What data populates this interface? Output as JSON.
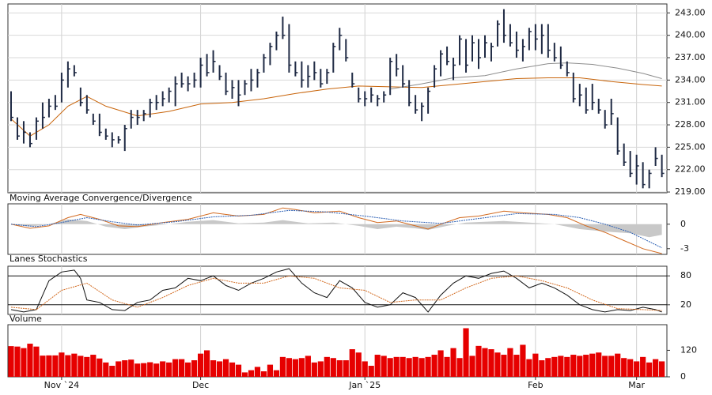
{
  "chart_data": {
    "type": "ohlc",
    "xlim": [
      -0.5,
      103.8
    ],
    "xticks": [
      {
        "value": 8,
        "label": "Nov `24"
      },
      {
        "value": 30,
        "label": "Dec"
      },
      {
        "value": 56,
        "label": "Jan `25"
      },
      {
        "value": 83,
        "label": "Feb"
      },
      {
        "value": 99,
        "label": "Mar"
      }
    ],
    "grid": true,
    "price": {
      "color": "#1f2a44",
      "ylim": [
        218.9,
        244.2
      ],
      "yticks": [
        {
          "value": 243,
          "label": "243.00"
        },
        {
          "value": 240,
          "label": "240.00"
        },
        {
          "value": 237,
          "label": "237.00"
        },
        {
          "value": 234,
          "label": "234.00"
        },
        {
          "value": 231,
          "label": "231.00"
        },
        {
          "value": 228,
          "label": "228.00"
        },
        {
          "value": 225,
          "label": "225.00"
        },
        {
          "value": 222,
          "label": "222.00"
        },
        {
          "value": 219,
          "label": "219.00"
        }
      ],
      "high": [
        232.5,
        229,
        228.5,
        227,
        229,
        231,
        231.5,
        232,
        235,
        236.5,
        236,
        233,
        232,
        229.5,
        229.5,
        227.5,
        227,
        226.5,
        228,
        230,
        230,
        230,
        231.5,
        232,
        232.5,
        233,
        234.5,
        235,
        234.5,
        235,
        237,
        237.5,
        238,
        236,
        235,
        234,
        234,
        234,
        235.5,
        235.5,
        237.5,
        239,
        240.5,
        242.5,
        241.5,
        236.5,
        236.5,
        236,
        236.5,
        235.5,
        235.5,
        239,
        241,
        239.5,
        235,
        233,
        232.5,
        233,
        232,
        232.5,
        237,
        237.5,
        236,
        234,
        232,
        231,
        233,
        236,
        238,
        238.5,
        237,
        240,
        239.5,
        240,
        239.5,
        240,
        239,
        242,
        243.5,
        241.5,
        240.5,
        239.5,
        241,
        241.5,
        241.5,
        241.5,
        239,
        238.5,
        236.5,
        235,
        233.5,
        233,
        233.5,
        231.5,
        230,
        231.5,
        229,
        225.5,
        224.5,
        224,
        223,
        222,
        225,
        224
      ],
      "low": [
        228.5,
        226,
        225.5,
        225,
        226,
        227.5,
        229,
        230,
        231,
        233,
        234.5,
        230.5,
        229.5,
        228,
        226.5,
        226,
        225,
        225.5,
        224.5,
        227.5,
        228,
        228.5,
        229,
        230,
        230.5,
        231,
        230.5,
        233,
        232.5,
        233,
        233,
        234.5,
        235,
        234,
        232,
        231.5,
        230.5,
        232,
        232.5,
        233,
        235,
        236,
        238,
        239.5,
        235,
        234.5,
        233,
        233,
        234,
        233,
        233.5,
        235,
        238,
        236.5,
        233,
        231,
        230.5,
        231,
        230.5,
        231,
        232,
        234.5,
        233,
        230.5,
        229.5,
        228.5,
        229.5,
        233,
        234.5,
        236,
        234,
        236,
        235,
        236.5,
        235.5,
        237,
        236.5,
        238.5,
        239,
        238.5,
        237,
        236.5,
        238,
        238,
        237.5,
        237,
        236.5,
        235.5,
        234.5,
        231,
        230.5,
        229.5,
        230,
        229.5,
        227.5,
        228,
        224,
        222.5,
        221,
        220,
        219.5,
        219.5,
        222.5,
        221
      ],
      "close": [
        229,
        226.5,
        227,
        225.5,
        228.5,
        229,
        230.5,
        230.5,
        234,
        235.5,
        235,
        231,
        230,
        228.5,
        227,
        226.5,
        226,
        226,
        227.5,
        229,
        229,
        229.5,
        231,
        231,
        231.5,
        232.5,
        233.5,
        233.5,
        233.5,
        234,
        236,
        235,
        236.5,
        234.5,
        232.5,
        233,
        232,
        233.5,
        234,
        235,
        237,
        238.5,
        240,
        240,
        236,
        235,
        234,
        234.5,
        235,
        233.5,
        235,
        238.5,
        240,
        237,
        233.5,
        231.5,
        231.5,
        232,
        231.5,
        232,
        236.5,
        235.5,
        233.5,
        231,
        230,
        230.5,
        232.5,
        235.5,
        237.5,
        236.5,
        236,
        239.5,
        236,
        239,
        237,
        239,
        238.5,
        241.5,
        240,
        239,
        238,
        238.5,
        240.5,
        239.5,
        240,
        238,
        237,
        236,
        235,
        231.5,
        232,
        230,
        231,
        230,
        228,
        229.5,
        224.5,
        223,
        221.5,
        222.5,
        220,
        221.5,
        223.5,
        221.5
      ],
      "ma": [
        {
          "color": "#c8640a",
          "x": [
            0,
            3,
            6,
            9,
            12,
            15,
            20,
            25,
            30,
            35,
            40,
            45,
            50,
            55,
            60,
            65,
            70,
            75,
            80,
            85,
            90,
            95,
            100,
            103
          ],
          "values": [
            228.8,
            226.5,
            228,
            230.5,
            231.8,
            230.5,
            229.2,
            229.8,
            230.8,
            231,
            231.5,
            232.2,
            232.8,
            233.2,
            233.1,
            233,
            233.4,
            233.8,
            234.2,
            234.3,
            234.3,
            233.8,
            233.4,
            233.2
          ]
        },
        {
          "color": "#8c8c8c",
          "x": [
            60,
            65,
            70,
            75,
            80,
            85,
            88,
            92,
            96,
            100,
            103
          ],
          "values": [
            232.8,
            233.5,
            234.3,
            234.6,
            235.5,
            236.2,
            236.3,
            236.1,
            235.6,
            234.9,
            234.2
          ]
        }
      ]
    },
    "macd": {
      "title": "Moving Average Convergence/Divergence",
      "ylim": [
        -3.7,
        2.5
      ],
      "yticks": [
        0,
        -3
      ],
      "histogram": {
        "color": "#c8c8c8",
        "x": [
          0,
          3,
          6,
          9,
          12,
          15,
          18,
          21,
          25,
          28,
          32,
          36,
          40,
          43,
          47,
          51,
          55,
          58,
          61,
          64,
          66,
          69,
          72,
          78,
          82,
          86,
          90,
          94,
          98,
          101,
          103
        ],
        "values": [
          0,
          -0.3,
          0,
          0.6,
          0.4,
          -0.3,
          -0.6,
          -0.3,
          0,
          0.3,
          0.5,
          0.1,
          0.2,
          0.5,
          0.1,
          0.2,
          -0.2,
          -0.6,
          -0.3,
          -0.5,
          -0.7,
          -0.2,
          0.2,
          0.4,
          0.2,
          0,
          -0.6,
          -0.9,
          -1.1,
          -1.6,
          -1.3
        ]
      },
      "lines": [
        {
          "color": "#d2691e",
          "dash": false,
          "x": [
            0,
            3,
            6,
            9,
            11,
            14,
            17,
            20,
            24,
            28,
            32,
            36,
            40,
            43,
            45,
            48,
            52,
            55,
            58,
            61,
            64,
            66,
            68,
            71,
            74,
            78,
            81,
            85,
            88,
            91,
            94,
            97,
            100,
            103
          ],
          "values": [
            0,
            -0.5,
            -0.2,
            0.8,
            1.2,
            0.6,
            -0.2,
            -0.3,
            0.2,
            0.6,
            1.4,
            1.0,
            1.2,
            2.0,
            1.8,
            1.4,
            1.6,
            0.8,
            0.2,
            0.4,
            -0.2,
            -0.6,
            0,
            0.8,
            1.0,
            1.6,
            1.4,
            1.2,
            0.8,
            -0.2,
            -1.0,
            -2.0,
            -3.0,
            -3.6
          ]
        },
        {
          "color": "#2b5fb4",
          "dash": true,
          "x": [
            0,
            4,
            8,
            12,
            16,
            20,
            26,
            32,
            38,
            44,
            50,
            56,
            62,
            68,
            74,
            80,
            86,
            90,
            94,
            98,
            103
          ],
          "values": [
            0,
            -0.3,
            0.2,
            0.8,
            0.3,
            -0.1,
            0.3,
            0.9,
            1.1,
            1.7,
            1.5,
            1.0,
            0.4,
            0.1,
            0.7,
            1.3,
            1.2,
            0.8,
            0,
            -1.0,
            -2.9
          ]
        }
      ]
    },
    "stoch": {
      "title": "Lanes Stochastics",
      "ylim": [
        0,
        100
      ],
      "yticks": [
        80,
        20
      ],
      "lines": [
        {
          "color": "#111111",
          "dash": false,
          "x": [
            0,
            2,
            4,
            6,
            8,
            10,
            11,
            12,
            14,
            16,
            18,
            20,
            22,
            24,
            26,
            28,
            30,
            32,
            34,
            36,
            38,
            40,
            42,
            44,
            46,
            48,
            50,
            52,
            54,
            56,
            58,
            60,
            62,
            64,
            66,
            68,
            70,
            72,
            74,
            76,
            78,
            80,
            82,
            84,
            86,
            88,
            90,
            92,
            94,
            96,
            98,
            100,
            102,
            103
          ],
          "values": [
            10,
            5,
            10,
            70,
            88,
            92,
            75,
            30,
            25,
            10,
            8,
            25,
            30,
            50,
            55,
            75,
            70,
            80,
            60,
            50,
            65,
            75,
            88,
            95,
            65,
            45,
            35,
            70,
            55,
            25,
            15,
            20,
            45,
            35,
            5,
            40,
            65,
            80,
            75,
            85,
            90,
            75,
            55,
            65,
            55,
            40,
            20,
            10,
            5,
            10,
            8,
            15,
            10,
            5
          ]
        },
        {
          "color": "#d2691e",
          "dash": true,
          "x": [
            0,
            4,
            8,
            12,
            16,
            20,
            24,
            28,
            32,
            36,
            40,
            44,
            48,
            52,
            56,
            60,
            64,
            68,
            72,
            76,
            80,
            84,
            88,
            92,
            96,
            100,
            103
          ],
          "values": [
            15,
            10,
            50,
            65,
            30,
            15,
            35,
            60,
            75,
            65,
            65,
            80,
            75,
            55,
            50,
            25,
            30,
            30,
            55,
            75,
            80,
            70,
            55,
            30,
            12,
            10,
            8
          ]
        }
      ]
    },
    "volume": {
      "title": "Volume",
      "color": "#e60000",
      "ylim": [
        0,
        236
      ],
      "yticks": [
        120,
        0
      ],
      "values": [
        139,
        137,
        130,
        150,
        137,
        96,
        97,
        97,
        110,
        98,
        105,
        95,
        90,
        100,
        83,
        65,
        50,
        70,
        75,
        78,
        60,
        62,
        66,
        60,
        70,
        65,
        80,
        80,
        65,
        75,
        105,
        120,
        75,
        70,
        80,
        65,
        55,
        20,
        30,
        45,
        25,
        55,
        30,
        90,
        85,
        80,
        85,
        95,
        65,
        70,
        90,
        85,
        75,
        75,
        125,
        110,
        70,
        50,
        100,
        95,
        85,
        90,
        90,
        85,
        90,
        85,
        90,
        100,
        120,
        90,
        130,
        85,
        220,
        95,
        140,
        130,
        125,
        110,
        100,
        130,
        100,
        145,
        80,
        105,
        75,
        85,
        90,
        95,
        90,
        100,
        95,
        100,
        105,
        110,
        95,
        95,
        105,
        85,
        80,
        70,
        90,
        65,
        80,
        70
      ]
    }
  }
}
